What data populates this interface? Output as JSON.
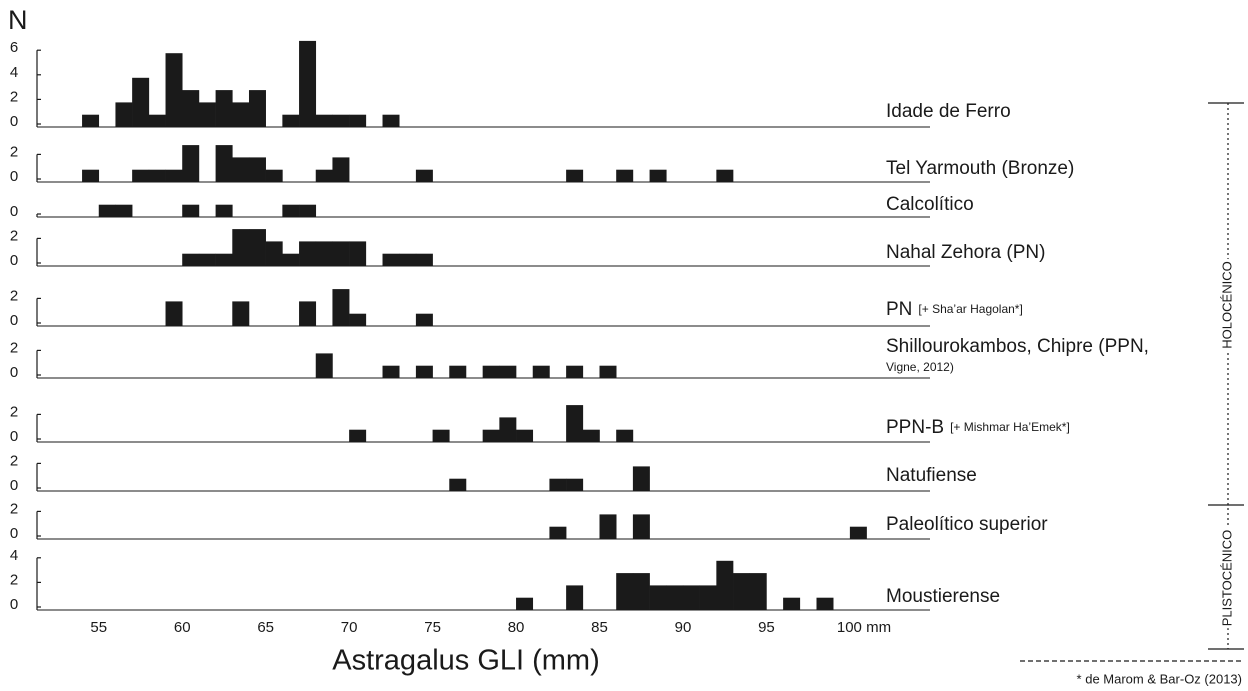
{
  "chart_data": {
    "type": "histogram",
    "ylabel": "N",
    "xlabel": "Astragalus GLI (mm)",
    "color": "#1a1a1a",
    "xlim": [
      51.3,
      104.8
    ],
    "xticks": [
      55,
      60,
      65,
      70,
      75,
      80,
      85,
      90,
      95,
      {
        "value": 100,
        "label": "100 mm"
      }
    ],
    "panels": [
      {
        "name": "Idade de Ferro",
        "ylim": [
          0,
          7
        ],
        "yticks": [
          0,
          2,
          4,
          6
        ],
        "bins": [
          54,
          55,
          56,
          57,
          58,
          59,
          60,
          61,
          62,
          63,
          64,
          65,
          66,
          67,
          68,
          69,
          70,
          71,
          72,
          73
        ],
        "counts": [
          1,
          0,
          2,
          4,
          1,
          6,
          3,
          2,
          3,
          2,
          3,
          0,
          1,
          7,
          1,
          1,
          1,
          0,
          1
        ]
      },
      {
        "name": "Tel Yarmouth (Bronze)",
        "ylim": [
          0,
          3
        ],
        "yticks": [
          0,
          2
        ],
        "bins": [
          54,
          55,
          56,
          57,
          58,
          59,
          60,
          61,
          62,
          63,
          64,
          65,
          66,
          67,
          68,
          69,
          70,
          71,
          72,
          73,
          74,
          75,
          76,
          77,
          78,
          79,
          80,
          81,
          82,
          83,
          84,
          85,
          86,
          87,
          88,
          89,
          90,
          91,
          92,
          93
        ],
        "counts": [
          1,
          0,
          0,
          1,
          1,
          1,
          3,
          0,
          3,
          2,
          2,
          1,
          0,
          0,
          1,
          2,
          0,
          0,
          0,
          0,
          1,
          0,
          0,
          0,
          0,
          0,
          0,
          0,
          0,
          1,
          0,
          0,
          1,
          0,
          1,
          0,
          0,
          0,
          1
        ]
      },
      {
        "name": "Calcolítico",
        "ylim": [
          0,
          1
        ],
        "yticks": [
          0
        ],
        "bins": [
          55,
          56,
          57,
          58,
          59,
          60,
          61,
          62,
          63,
          64,
          65,
          66,
          67,
          68
        ],
        "counts": [
          1,
          1,
          0,
          0,
          0,
          1,
          0,
          1,
          0,
          0,
          0,
          1,
          1
        ]
      },
      {
        "name": "Nahal Zehora (PN)",
        "ylim": [
          0,
          3
        ],
        "yticks": [
          0,
          2
        ],
        "bins": [
          60,
          61,
          62,
          63,
          64,
          65,
          66,
          67,
          68,
          69,
          70,
          71,
          72,
          73,
          74,
          75
        ],
        "counts": [
          1,
          1,
          1,
          3,
          3,
          2,
          1,
          2,
          2,
          2,
          2,
          0,
          1,
          1,
          1
        ]
      },
      {
        "name": "PN",
        "note": "[+ Sha’ar Hagolan*]",
        "ylim": [
          0,
          3
        ],
        "yticks": [
          0,
          2
        ],
        "bins": [
          59,
          60,
          61,
          62,
          63,
          64,
          65,
          66,
          67,
          68,
          69,
          70,
          71,
          72,
          73,
          74,
          75
        ],
        "counts": [
          2,
          0,
          0,
          0,
          2,
          0,
          0,
          0,
          2,
          0,
          3,
          1,
          0,
          0,
          0,
          1
        ]
      },
      {
        "name": "Shillourokambos, Chipre (PPN,",
        "note": "Vigne, 2012)",
        "ylim": [
          0,
          2
        ],
        "yticks": [
          0,
          2
        ],
        "bins": [
          68,
          69,
          70,
          71,
          72,
          73,
          74,
          75,
          76,
          77,
          78,
          79,
          80,
          81,
          82,
          83,
          84,
          85,
          86
        ],
        "counts": [
          2,
          0,
          0,
          0,
          1,
          0,
          1,
          0,
          1,
          0,
          1,
          1,
          0,
          1,
          0,
          1,
          0,
          1
        ]
      },
      {
        "name": "PPN-B",
        "note": "[+ Mishmar Ha’Emek*]",
        "ylim": [
          0,
          3
        ],
        "yticks": [
          0,
          2
        ],
        "bins": [
          70,
          71,
          72,
          73,
          74,
          75,
          76,
          77,
          78,
          79,
          80,
          81,
          82,
          83,
          84,
          85,
          86,
          87
        ],
        "counts": [
          1,
          0,
          0,
          0,
          0,
          1,
          0,
          0,
          1,
          2,
          1,
          0,
          0,
          3,
          1,
          0,
          1
        ]
      },
      {
        "name": "Natufiense",
        "ylim": [
          0,
          2
        ],
        "yticks": [
          0,
          2
        ],
        "bins": [
          76,
          77,
          78,
          79,
          80,
          81,
          82,
          83,
          84,
          85,
          86,
          87,
          88
        ],
        "counts": [
          1,
          0,
          0,
          0,
          0,
          0,
          1,
          1,
          0,
          0,
          0,
          2
        ]
      },
      {
        "name": "Paleolítico superior",
        "ylim": [
          0,
          2
        ],
        "yticks": [
          0,
          2
        ],
        "bins": [
          82,
          83,
          84,
          85,
          86,
          87,
          88,
          89,
          90,
          91,
          92,
          93,
          94,
          95,
          96,
          97,
          98,
          99,
          100,
          101
        ],
        "counts": [
          1,
          0,
          0,
          2,
          0,
          2,
          0,
          0,
          0,
          0,
          0,
          0,
          0,
          0,
          0,
          0,
          0,
          0,
          1
        ]
      },
      {
        "name": "Moustierense",
        "ylim": [
          0,
          4
        ],
        "yticks": [
          0,
          2,
          4
        ],
        "bins": [
          80,
          81,
          82,
          83,
          84,
          85,
          86,
          87,
          88,
          89,
          90,
          91,
          92,
          93,
          94,
          95,
          96,
          97,
          98,
          99
        ],
        "counts": [
          1,
          0,
          0,
          2,
          0,
          0,
          3,
          3,
          2,
          2,
          2,
          2,
          4,
          3,
          3,
          0,
          1,
          0,
          1
        ]
      }
    ],
    "periods": [
      "HOLOCÉNICO",
      "PLISTOCÉNICO"
    ],
    "footnote": "* de Marom & Bar-Oz (2013)"
  }
}
